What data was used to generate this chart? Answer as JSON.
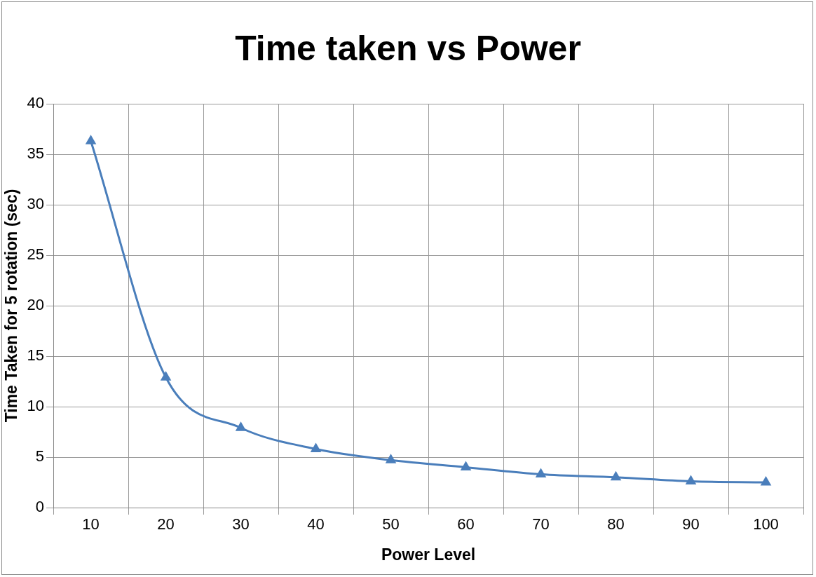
{
  "chart_data": {
    "type": "line",
    "title": "Time taken vs Power",
    "xlabel": "Power Level",
    "ylabel": "Time Taken for 5 rotation (sec)",
    "categories": [
      "10",
      "20",
      "30",
      "40",
      "50",
      "60",
      "70",
      "80",
      "90",
      "100"
    ],
    "series": [
      {
        "color": "#4a7ebb",
        "values": [
          36.3,
          12.9,
          7.9,
          5.8,
          4.7,
          4.0,
          3.3,
          3.0,
          2.6,
          2.5
        ]
      }
    ],
    "ylim": [
      0,
      40
    ],
    "yticks": [
      0,
      5,
      10,
      15,
      20,
      25,
      30,
      35,
      40
    ],
    "grid": true,
    "legend": false,
    "marker": "triangle",
    "line_style": "solid"
  }
}
